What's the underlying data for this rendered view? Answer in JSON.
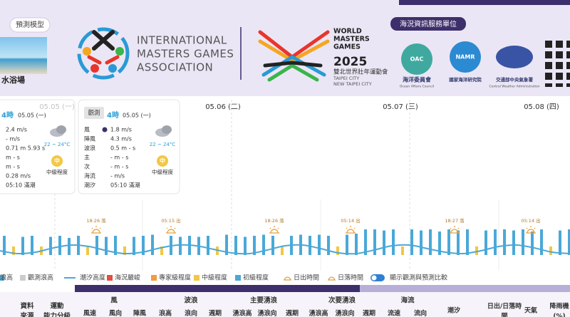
{
  "banner": {
    "model_label": "預測模型",
    "thumb_label": "水浴場",
    "imga": [
      "INTERNATIONAL",
      "MASTERS GAMES",
      "ASSOCIATION"
    ],
    "wmg": {
      "lines": [
        "WORLD",
        "MASTERS",
        "GAMES"
      ],
      "year": "2025",
      "zh": "雙北世界壯年運動會",
      "cities": [
        "TAIPEI CITY",
        "NEW TAIPEI CITY"
      ]
    },
    "service_title": "海況資訊服務單位",
    "agencies": [
      {
        "abbr": "OAC",
        "zh": "海洋委員會",
        "en": "Ocean Affairs Council"
      },
      {
        "abbr": "NAMR",
        "zh": "國家海洋研究院"
      },
      {
        "zh": "交通部中央氣象署",
        "en": "Central Weather Administration"
      }
    ]
  },
  "dates": [
    "05.05 (一)",
    "05.06 (二)",
    "05.07 (三)",
    "05.08 (四)"
  ],
  "cards": [
    {
      "hour": "4時",
      "date": "05.05 (一)",
      "rows": [
        "2.4 m/s",
        "- m/s",
        "0.71 m  5.93 s",
        "m  -  s",
        "m  -  s",
        "0.28 m/s",
        "05:10 滿潮"
      ],
      "temp": "22 ~ 24°C",
      "level": "中",
      "level_text": "中級程度"
    },
    {
      "badge": "觀測",
      "hour": "4時",
      "date": "05.05 (一)",
      "rows": [
        [
          "風",
          "1.8 m/s"
        ],
        [
          "陣風",
          "4.3 m/s"
        ],
        [
          "波浪",
          "0.5 m  -  s"
        ],
        [
          "主",
          "-  m  -  s"
        ],
        [
          "次",
          "-  m  -  s"
        ],
        [
          "海流",
          "- m/s"
        ],
        [
          "潮汐",
          "05:10 滿潮"
        ]
      ],
      "temp": "22 ~ 24°C",
      "level": "中",
      "level_text": "中級程度"
    }
  ],
  "chart_data": {
    "type": "bar",
    "values": [
      0.9,
      0.4,
      0.85,
      0.9,
      0.4,
      0.85,
      0.9,
      0.8,
      0.9,
      0.4,
      0.9,
      0.85,
      0.9,
      0.4,
      0.85,
      0.9,
      0.95,
      0.4,
      0.9,
      0.85,
      0.9,
      0.85,
      0.9,
      0.4,
      0.95,
      0.9,
      0.85,
      0.9,
      0.95,
      0.9,
      0.4,
      0.9,
      0.95,
      0.9,
      0.95,
      0.9,
      0.4,
      0.95,
      1.0,
      1.2,
      1.2,
      1.15,
      1.2,
      0.4,
      1.2,
      1.15,
      1.2,
      1.1,
      1.2,
      1.15,
      1.2,
      0.4,
      1.15,
      1.2,
      1.2,
      1.15,
      1.2,
      1.1,
      1.2,
      0.4,
      1.15,
      1.2
    ],
    "colors": [
      "#4aa8d8",
      "#f2c744",
      "#4aa8d8",
      "#4aa8d8",
      "#f2c744",
      "#4aa8d8",
      "#4aa8d8",
      "#4aa8d8",
      "#4aa8d8",
      "#f2c744",
      "#4aa8d8",
      "#4aa8d8",
      "#4aa8d8",
      "#f2c744",
      "#4aa8d8",
      "#4aa8d8",
      "#4aa8d8",
      "#f2c744",
      "#4aa8d8",
      "#4aa8d8",
      "#4aa8d8",
      "#4aa8d8",
      "#4aa8d8",
      "#f2c744",
      "#4aa8d8",
      "#4aa8d8",
      "#4aa8d8",
      "#4aa8d8",
      "#4aa8d8",
      "#4aa8d8",
      "#f2c744",
      "#4aa8d8",
      "#4aa8d8",
      "#4aa8d8",
      "#4aa8d8",
      "#4aa8d8",
      "#f2c744",
      "#4aa8d8",
      "#4aa8d8",
      "#4aa8d8",
      "#4aa8d8",
      "#4aa8d8",
      "#4aa8d8",
      "#f2c744",
      "#4aa8d8",
      "#4aa8d8",
      "#4aa8d8",
      "#4aa8d8",
      "#4aa8d8",
      "#4aa8d8",
      "#4aa8d8",
      "#f2c744",
      "#4aa8d8",
      "#4aa8d8",
      "#4aa8d8",
      "#4aa8d8",
      "#4aa8d8",
      "#4aa8d8",
      "#4aa8d8",
      "#f2c744",
      "#4aa8d8",
      "#4aa8d8"
    ],
    "tide": {
      "color": "#4aa8d8",
      "values": [
        -0.1,
        -0.3,
        -0.2,
        0.1,
        0.3,
        0.2,
        -0.1,
        -0.3,
        -0.2,
        0.1,
        0.3,
        0.25,
        0,
        -0.25,
        -0.3,
        -0.05,
        0.25,
        0.3,
        0.05,
        -0.25,
        -0.3,
        -0.05,
        0.25,
        0.3,
        0.05,
        -0.2,
        -0.3,
        -0.1,
        0.2,
        0.3,
        0.1,
        -0.2,
        -0.3
      ]
    },
    "sun_events": [
      "18:26 落",
      "05:15 出",
      "18:26 落",
      "05:14 出",
      "18:27 落",
      "05:14 出"
    ]
  },
  "legend": [
    {
      "label": "浪高",
      "color": "#4aa8d8"
    },
    {
      "label": "觀測浪高",
      "color": "#cccccc"
    },
    {
      "label": "潮汐高度",
      "color": "#4aa8d8"
    },
    {
      "label": "海況嚴峻",
      "color": "#e74c3c"
    },
    {
      "label": "專家級程度",
      "color": "#f39c3c"
    },
    {
      "label": "中級程度",
      "color": "#f2c744"
    },
    {
      "label": "初級程度",
      "color": "#4aa8d8"
    },
    {
      "label": "日出時間",
      "color": "#e8a040"
    },
    {
      "label": "日落時間",
      "color": "#e8a040"
    },
    {
      "label": "顯示觀測與預測比較",
      "color": "#2f7fd6"
    }
  ],
  "table_header": {
    "left": [
      [
        "資料",
        "來源"
      ],
      [
        "運動",
        "能力分級"
      ]
    ],
    "groups": [
      "風",
      "波浪",
      "主要湧浪",
      "次要湧浪",
      "海流"
    ],
    "columns": [
      "風速",
      "風向",
      "陣風",
      "浪高",
      "浪向",
      "週期",
      "湧浪高",
      "湧浪向",
      "週期",
      "湧浪高",
      "湧浪向",
      "週期",
      "流速",
      "流向"
    ],
    "right": [
      [
        "潮汐"
      ],
      [
        "日出/日落時",
        "間"
      ],
      [
        "天氣"
      ],
      [
        "降雨機",
        "(%)"
      ]
    ]
  }
}
